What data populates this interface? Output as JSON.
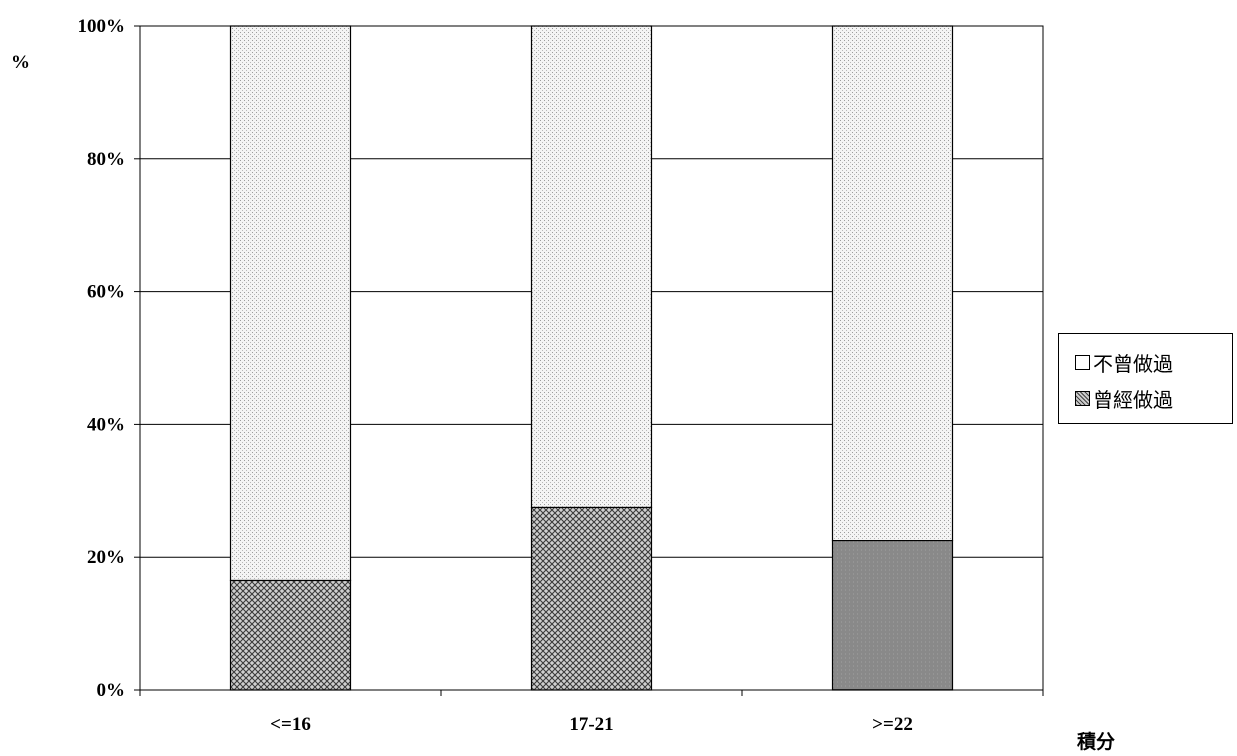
{
  "chart_data": {
    "type": "bar",
    "stacked": true,
    "categories": [
      "<=16",
      "17-21",
      ">=22"
    ],
    "series": [
      {
        "name": "曾經做過",
        "values": [
          16.5,
          27.5,
          22.5
        ]
      },
      {
        "name": "不曾做過",
        "values": [
          83.5,
          72.5,
          77.5
        ]
      }
    ],
    "ylabel": "%",
    "xlabel": "積分",
    "ylim": [
      0,
      100
    ],
    "yticks": [
      "0%",
      "20%",
      "40%",
      "60%",
      "80%",
      "100%"
    ],
    "grid": true,
    "legend": "right",
    "colors": {
      "曾經做過": "#9a9a9a",
      "不曾做過": "#e4e4e4"
    }
  }
}
